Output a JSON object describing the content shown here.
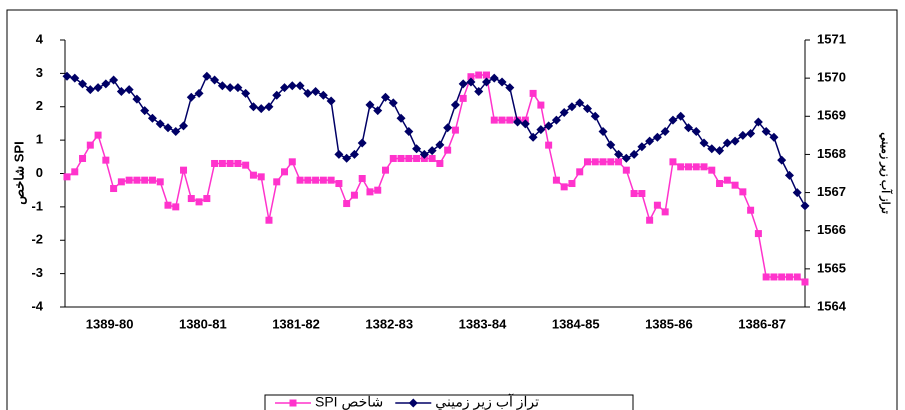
{
  "chart_data": {
    "type": "line",
    "categories": [
      null,
      null,
      null,
      null,
      null,
      null,
      "1389-80",
      null,
      null,
      null,
      null,
      null,
      null,
      null,
      null,
      null,
      null,
      null,
      "1380-81",
      null,
      null,
      null,
      null,
      null,
      null,
      null,
      null,
      null,
      null,
      null,
      "1381-82",
      null,
      null,
      null,
      null,
      null,
      null,
      null,
      null,
      null,
      null,
      null,
      "1382-83",
      null,
      null,
      null,
      null,
      null,
      null,
      null,
      null,
      null,
      null,
      null,
      "1383-84",
      null,
      null,
      null,
      null,
      null,
      null,
      null,
      null,
      null,
      null,
      null,
      "1384-85",
      null,
      null,
      null,
      null,
      null,
      null,
      null,
      null,
      null,
      null,
      null,
      "1385-86",
      null,
      null,
      null,
      null,
      null,
      null,
      null,
      null,
      null,
      null,
      null,
      "1386-87",
      null,
      null,
      null,
      null,
      null
    ],
    "series": [
      {
        "name": "شاخص SPI",
        "color": "#ff33cc",
        "marker": "square",
        "values": [
          -0.1,
          0.05,
          0.45,
          0.85,
          1.15,
          0.4,
          -0.45,
          -0.25,
          -0.2,
          -0.2,
          -0.2,
          -0.2,
          -0.25,
          -0.95,
          -1.0,
          0.1,
          -0.75,
          -0.85,
          -0.75,
          0.3,
          0.3,
          0.3,
          0.3,
          0.25,
          -0.05,
          -0.1,
          -1.4,
          -0.25,
          0.05,
          0.35,
          -0.2,
          -0.2,
          -0.2,
          -0.2,
          -0.2,
          -0.3,
          -0.9,
          -0.65,
          -0.15,
          -0.55,
          -0.5,
          0.1,
          0.45,
          0.45,
          0.45,
          0.45,
          0.45,
          0.45,
          0.3,
          0.7,
          1.3,
          2.25,
          2.9,
          2.95,
          2.95,
          1.6,
          1.6,
          1.6,
          1.6,
          1.6,
          2.4,
          2.05,
          0.85,
          -0.2,
          -0.4,
          -0.3,
          0.05,
          0.35,
          0.35,
          0.35,
          0.35,
          0.35,
          0.1,
          -0.6,
          -0.6,
          -1.4,
          -0.95,
          -1.15,
          0.35,
          0.2,
          0.2,
          0.2,
          0.2,
          0.1,
          -0.3,
          -0.2,
          -0.35,
          -0.55,
          -1.1,
          -1.8,
          -3.1,
          -3.1,
          -3.1,
          -3.1,
          -3.1,
          -3.25
        ]
      },
      {
        "name": "تراز آب زير زميني",
        "color": "#000066",
        "marker": "diamond",
        "axis": "y2",
        "values": [
          1570.05,
          1570.0,
          1569.85,
          1569.7,
          1569.75,
          1569.85,
          1569.95,
          1569.65,
          1569.7,
          1569.45,
          1569.15,
          1568.95,
          1568.8,
          1568.7,
          1568.6,
          1568.75,
          1569.5,
          1569.6,
          1570.05,
          1569.95,
          1569.8,
          1569.75,
          1569.75,
          1569.6,
          1569.25,
          1569.2,
          1569.25,
          1569.55,
          1569.75,
          1569.8,
          1569.8,
          1569.6,
          1569.65,
          1569.55,
          1569.4,
          1568.0,
          1567.9,
          1568.0,
          1568.3,
          1569.3,
          1569.15,
          1569.5,
          1569.35,
          1568.95,
          1568.6,
          1568.15,
          1568.0,
          1568.1,
          1568.25,
          1568.7,
          1569.3,
          1569.85,
          1569.9,
          1569.65,
          1569.9,
          1570.0,
          1569.9,
          1569.75,
          1568.85,
          1568.8,
          1568.45,
          1568.65,
          1568.75,
          1568.9,
          1569.1,
          1569.25,
          1569.35,
          1569.2,
          1569.0,
          1568.6,
          1568.25,
          1568.0,
          1567.9,
          1568.0,
          1568.2,
          1568.35,
          1568.45,
          1568.6,
          1568.9,
          1569.0,
          1568.7,
          1568.6,
          1568.3,
          1568.15,
          1568.1,
          1568.3,
          1568.35,
          1568.5,
          1568.55,
          1568.85,
          1568.6,
          1568.45,
          1567.85,
          1567.45,
          1567.0,
          1566.65
        ]
      }
    ],
    "y_label": "شاخص SPI",
    "y2_label": "تراز آب زير زميني",
    "ylim": [
      -4,
      4
    ],
    "yticks": [
      -4,
      -3,
      -2,
      -1,
      0,
      1,
      2,
      3,
      4
    ],
    "y2lim": [
      1564,
      1571
    ],
    "y2ticks": [
      1564,
      1565,
      1566,
      1567,
      1568,
      1569,
      1570,
      1571
    ],
    "legend": "bottom"
  }
}
